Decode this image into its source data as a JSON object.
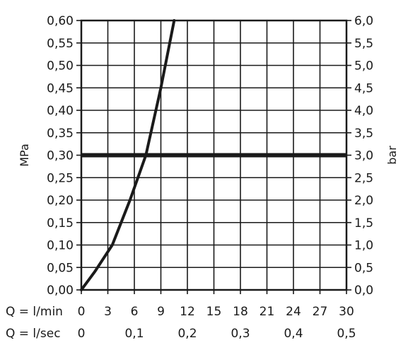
{
  "chart_data": {
    "type": "line",
    "left_axis": {
      "label": "MPa",
      "range": [
        0.0,
        0.6
      ],
      "ticks": [
        "0,00",
        "0,05",
        "0,10",
        "0,15",
        "0,20",
        "0,25",
        "0,30",
        "0,35",
        "0,40",
        "0,45",
        "0,50",
        "0,55",
        "0,60"
      ]
    },
    "right_axis": {
      "label": "bar",
      "range": [
        0.0,
        6.0
      ],
      "ticks": [
        "0,0",
        "0,5",
        "1,0",
        "1,5",
        "2,0",
        "2,5",
        "3,0",
        "3,5",
        "4,0",
        "4,5",
        "5,0",
        "5,5",
        "6,0"
      ]
    },
    "x_axis_lmin": {
      "prefix": "Q = l/min",
      "range": [
        0,
        30
      ],
      "ticks": [
        {
          "v": 0,
          "label": "0"
        },
        {
          "v": 3,
          "label": "3"
        },
        {
          "v": 6,
          "label": "6"
        },
        {
          "v": 9,
          "label": "9"
        },
        {
          "v": 12,
          "label": "12"
        },
        {
          "v": 15,
          "label": "15"
        },
        {
          "v": 18,
          "label": "18"
        },
        {
          "v": 21,
          "label": "21"
        },
        {
          "v": 24,
          "label": "24"
        },
        {
          "v": 27,
          "label": "27"
        },
        {
          "v": 30,
          "label": "30"
        }
      ]
    },
    "x_axis_lsec": {
      "prefix": "Q = l/sec",
      "ticks": [
        {
          "v": 0,
          "label": "0"
        },
        {
          "v": 6,
          "label": "0,1"
        },
        {
          "v": 12,
          "label": "0,2"
        },
        {
          "v": 18,
          "label": "0,3"
        },
        {
          "v": 24,
          "label": "0,4"
        },
        {
          "v": 30,
          "label": "0,5"
        }
      ]
    },
    "series": [
      {
        "color": "#1a1a1a",
        "points": [
          {
            "x": 0,
            "y": 0.0
          },
          {
            "x": 1.5,
            "y": 0.04
          },
          {
            "x": 3.5,
            "y": 0.1
          },
          {
            "x": 5.5,
            "y": 0.2
          },
          {
            "x": 7.3,
            "y": 0.3
          },
          {
            "x": 9,
            "y": 0.45
          },
          {
            "x": 10.5,
            "y": 0.6
          }
        ]
      }
    ],
    "reference_line": {
      "y": 0.3,
      "color": "#1a1a1a"
    },
    "grid": true
  }
}
